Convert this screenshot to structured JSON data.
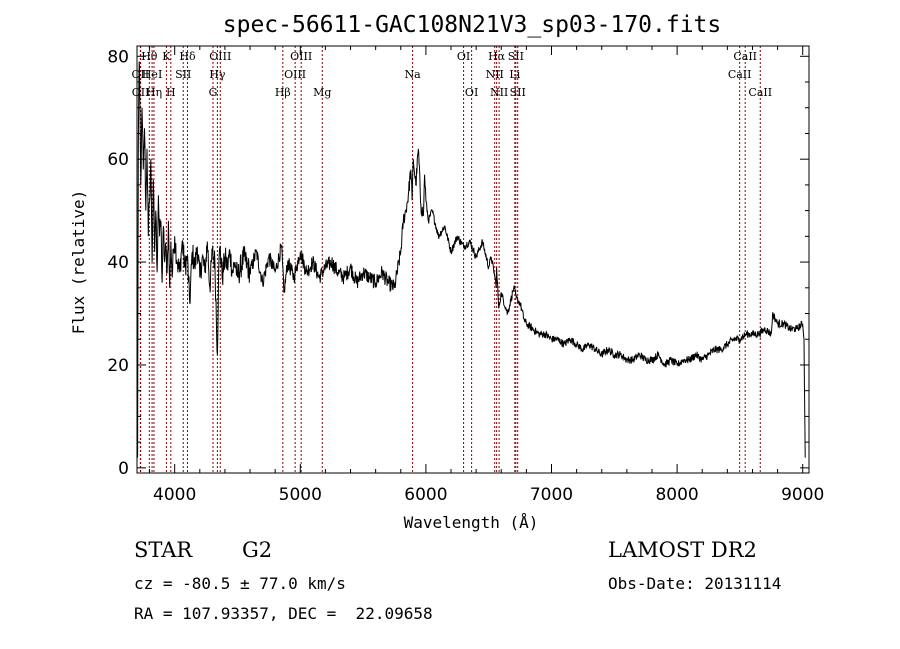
{
  "chart_data": {
    "type": "line",
    "title": "spec-56611-GAC108N21V3_sp03-170.fits",
    "xlabel": "Wavelength (Å)",
    "ylabel": "Flux (relative)",
    "xlim": [
      3700,
      9050
    ],
    "ylim": [
      -1,
      82
    ],
    "x_ticks": [
      4000,
      5000,
      6000,
      7000,
      8000,
      9000
    ],
    "y_ticks": [
      0,
      20,
      40,
      60,
      80
    ],
    "grid": false,
    "series": [
      {
        "x": [
          3700,
          3705,
          3710,
          3715,
          3720,
          3730,
          3740,
          3750,
          3760,
          3770,
          3780,
          3790,
          3800,
          3810,
          3820,
          3830,
          3840,
          3850,
          3860,
          3870,
          3880,
          3890,
          3900,
          3910,
          3920,
          3930,
          3940,
          3950,
          3960,
          3970,
          3980,
          3990,
          4000,
          4020,
          4040,
          4060,
          4080,
          4100,
          4120,
          4140,
          4160,
          4180,
          4200,
          4220,
          4240,
          4260,
          4280,
          4300,
          4320,
          4340,
          4350,
          4360,
          4380,
          4400,
          4420,
          4440,
          4460,
          4480,
          4500,
          4550,
          4600,
          4650,
          4700,
          4750,
          4800,
          4850,
          4870,
          4900,
          4950,
          5000,
          5050,
          5100,
          5150,
          5200,
          5250,
          5300,
          5350,
          5400,
          5450,
          5500,
          5550,
          5600,
          5650,
          5700,
          5750,
          5800,
          5820,
          5840,
          5860,
          5880,
          5890,
          5900,
          5920,
          5940,
          5960,
          5980,
          5990,
          6000,
          6020,
          6050,
          6100,
          6150,
          6200,
          6250,
          6300,
          6350,
          6400,
          6450,
          6500,
          6520,
          6550,
          6560,
          6563,
          6580,
          6600,
          6650,
          6700,
          6720,
          6750,
          6780,
          6800,
          6850,
          6900,
          6950,
          7000,
          7050,
          7100,
          7150,
          7200,
          7250,
          7300,
          7350,
          7400,
          7450,
          7500,
          7550,
          7600,
          7650,
          7700,
          7750,
          7800,
          7850,
          7900,
          7950,
          8000,
          8050,
          8100,
          8150,
          8200,
          8250,
          8300,
          8350,
          8400,
          8450,
          8500,
          8550,
          8600,
          8650,
          8700,
          8750,
          8760,
          8800,
          8850,
          8900,
          8950,
          9000,
          9010,
          9020
        ],
        "y": [
          5,
          2,
          62,
          75,
          78,
          55,
          70,
          58,
          66,
          50,
          62,
          45,
          52,
          60,
          40,
          56,
          42,
          50,
          38,
          53,
          45,
          48,
          36,
          47,
          40,
          43,
          38,
          48,
          35,
          44,
          37,
          42,
          45,
          40,
          38,
          44,
          39,
          41,
          32,
          42,
          39,
          43,
          37,
          41,
          38,
          44,
          35,
          42,
          40,
          22,
          38,
          43,
          37,
          41,
          39,
          42,
          38,
          40,
          37,
          41,
          38,
          42,
          36,
          41,
          38,
          43,
          34,
          40,
          37,
          42,
          38,
          40,
          37,
          39,
          40,
          38,
          37,
          39,
          36,
          38,
          37,
          36,
          38,
          36,
          35,
          42,
          48,
          50,
          53,
          58,
          52,
          60,
          55,
          62,
          51,
          49,
          57,
          52,
          48,
          50,
          45,
          47,
          42,
          45,
          43,
          44,
          41,
          44,
          39,
          41,
          37,
          35,
          39,
          31,
          34,
          30,
          35,
          33,
          32,
          29,
          28,
          27,
          26,
          26,
          25,
          25,
          24,
          25,
          24,
          23,
          24,
          23,
          22,
          23,
          22,
          22,
          21,
          21,
          22,
          21,
          21,
          22,
          20,
          21,
          20,
          21,
          21,
          22,
          21,
          22,
          23,
          23,
          24,
          25,
          25,
          26,
          26,
          26,
          27,
          26,
          30,
          28,
          28,
          27,
          27,
          28,
          25,
          2
        ]
      }
    ],
    "line_markers": [
      {
        "label": "OII",
        "w": 3727,
        "row": 1
      },
      {
        "label": "OII",
        "w": 3729,
        "row": 2
      },
      {
        "label": "Hθ",
        "w": 3798,
        "row": 0
      },
      {
        "label": "HeI",
        "w": 3820,
        "row": 1
      },
      {
        "label": "Hη",
        "w": 3835,
        "row": 2
      },
      {
        "label": "K",
        "w": 3934,
        "row": 0
      },
      {
        "label": "SII",
        "w": 4068,
        "row": 1
      },
      {
        "label": "H",
        "w": 3969,
        "row": 2
      },
      {
        "label": "Hδ",
        "w": 4102,
        "row": 0
      },
      {
        "label": "OIII",
        "w": 4363,
        "row": 0
      },
      {
        "label": "Hγ",
        "w": 4340,
        "row": 1
      },
      {
        "label": "G",
        "w": 4305,
        "row": 2
      },
      {
        "label": "Hβ",
        "w": 4861,
        "row": 2
      },
      {
        "label": "OIII",
        "w": 5007,
        "row": 0
      },
      {
        "label": "OIII",
        "w": 4959,
        "row": 1
      },
      {
        "label": "Mg",
        "w": 5175,
        "row": 2
      },
      {
        "label": "Na",
        "w": 5894,
        "row": 1
      },
      {
        "label": "OI",
        "w": 6300,
        "row": 0
      },
      {
        "label": "OI",
        "w": 6364,
        "row": 2
      },
      {
        "label": "Hα",
        "w": 6563,
        "row": 0
      },
      {
        "label": "NII",
        "w": 6548,
        "row": 1
      },
      {
        "label": "NII",
        "w": 6583,
        "row": 2
      },
      {
        "label": "SII",
        "w": 6716,
        "row": 0
      },
      {
        "label": "Li",
        "w": 6708,
        "row": 1
      },
      {
        "label": "SII",
        "w": 6731,
        "row": 2
      },
      {
        "label": "CaII",
        "w": 8542,
        "row": 0
      },
      {
        "label": "CaII",
        "w": 8498,
        "row": 1
      },
      {
        "label": "CaII",
        "w": 8662,
        "row": 2
      }
    ]
  },
  "footer": {
    "class_label": "STAR",
    "subclass": "G2",
    "survey": "LAMOST DR2",
    "cz": "cz = -80.5 ± 77.0 km/s",
    "obs_date": "Obs-Date: 20131114",
    "coords": "RA = 107.93357, DEC =  22.09658"
  },
  "colors": {
    "spectrum": "#000000",
    "marker_line": "#8b0000"
  }
}
